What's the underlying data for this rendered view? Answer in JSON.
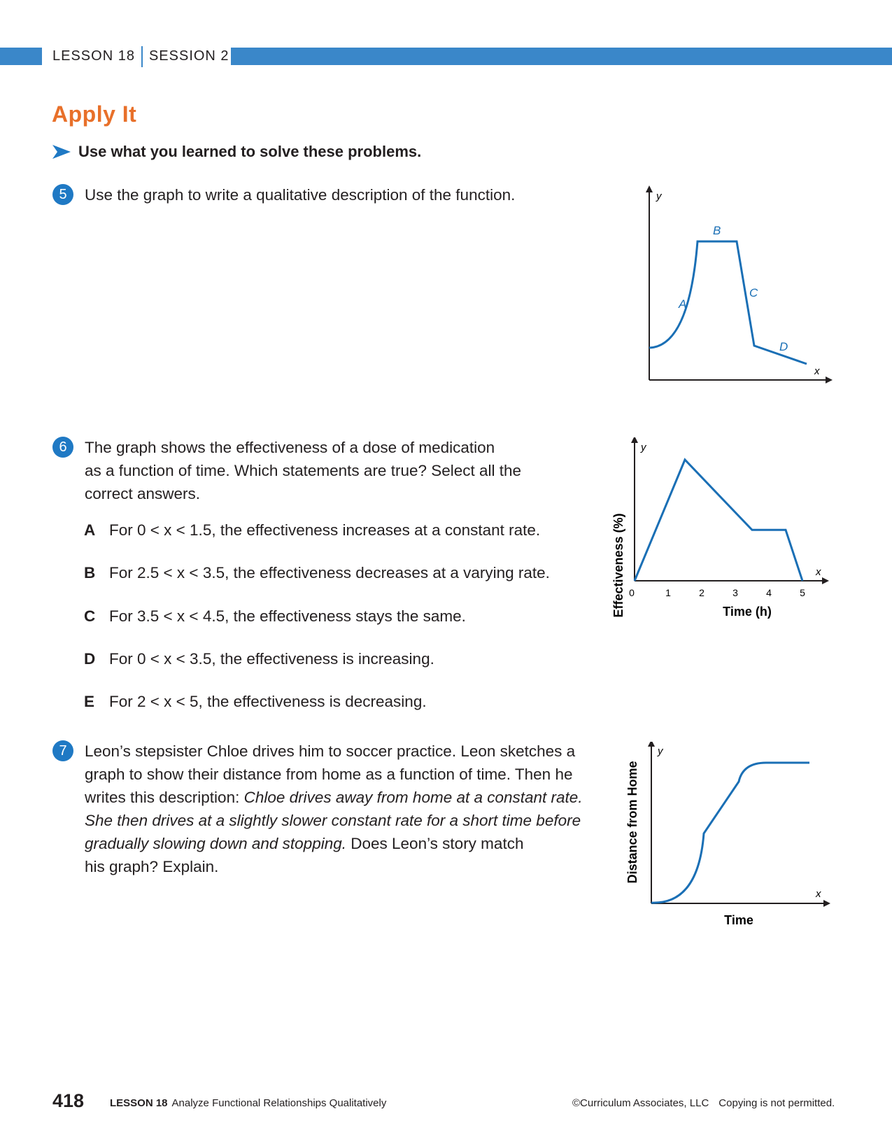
{
  "header": {
    "lesson": "LESSON 18",
    "session": "SESSION 2",
    "band_color": "#3a87c9"
  },
  "title": "Apply It",
  "instruction": "Use what you learned to solve these problems.",
  "questions": [
    {
      "number": "5",
      "text": "Use the graph to write a qualitative description of the function."
    },
    {
      "number": "6",
      "lines": [
        "The graph shows the effectiveness of a dose of medication",
        "as a function of time. Which statements are true? Select all the",
        "correct answers."
      ],
      "options": [
        {
          "letter": "A",
          "text": "For 0 < x < 1.5, the effectiveness increases at a constant rate."
        },
        {
          "letter": "B",
          "text": "For 2.5 < x < 3.5, the effectiveness decreases at a varying rate."
        },
        {
          "letter": "C",
          "text": "For 3.5 < x < 4.5, the effectiveness stays the same."
        },
        {
          "letter": "D",
          "text": "For 0 < x < 3.5, the effectiveness is increasing."
        },
        {
          "letter": "E",
          "text": "For 2 < x < 5, the effectiveness is decreasing."
        }
      ]
    },
    {
      "number": "7",
      "line1": "Leon’s stepsister Chloe drives him to soccer practice. Leon sketches a",
      "line2": "graph to show their distance from home as a function of time. Then he",
      "line3_plain": "writes this description: ",
      "line3_italic": "Chloe drives away from home at a constant rate.",
      "line4_italic": "She then drives at a slightly slower constant rate for a short time before",
      "line5_italic": "gradually slowing down and stopping.",
      "line5_plain": " Does Leon’s story match",
      "line6": "his graph? Explain."
    }
  ],
  "graph5": {
    "y_label": "y",
    "x_label": "x",
    "segment_labels": [
      "A",
      "B",
      "C",
      "D"
    ]
  },
  "graph6": {
    "y_axis_title": "Effectiveness (%)",
    "x_axis_title": "Time (h)",
    "y_label": "y",
    "x_label": "x",
    "x_ticks": [
      "0",
      "1",
      "2",
      "3",
      "4",
      "5"
    ]
  },
  "graph7": {
    "y_axis_title": "Distance from Home",
    "x_axis_title": "Time",
    "y_label": "y",
    "x_label": "x"
  },
  "chart_data": [
    {
      "type": "line",
      "title": "",
      "xlabel": "x",
      "ylabel": "y",
      "segments": [
        "A",
        "B",
        "C",
        "D"
      ]
    },
    {
      "type": "line",
      "title": "",
      "xlabel": "Time (h)",
      "ylabel": "Effectiveness (%)",
      "x": [
        0,
        1.5,
        3.5,
        4.5,
        5
      ],
      "y": [
        0,
        10,
        4.2,
        4.2,
        0
      ],
      "xlim": [
        0,
        5.3
      ]
    },
    {
      "type": "line",
      "title": "",
      "xlabel": "Time",
      "ylabel": "Distance from Home"
    }
  ],
  "footer": {
    "page": "418",
    "lesson": "LESSON 18",
    "lesson_title": "Analyze Functional Relationships Qualitatively",
    "copyright": "©Curriculum Associates, LLC",
    "notice": "Copying is not permitted."
  },
  "colors": {
    "accent_blue": "#1f79c4",
    "title_orange": "#e8702a",
    "curve_blue": "#1a6fb5"
  }
}
